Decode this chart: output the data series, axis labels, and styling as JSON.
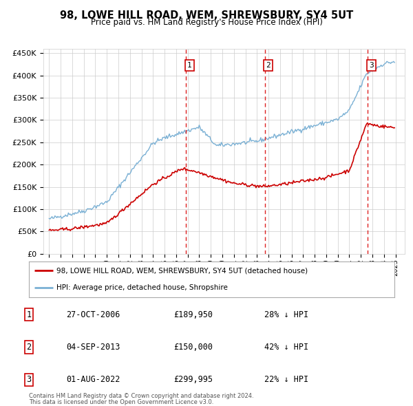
{
  "title": "98, LOWE HILL ROAD, WEM, SHREWSBURY, SY4 5UT",
  "subtitle": "Price paid vs. HM Land Registry's House Price Index (HPI)",
  "legend_entry1": "98, LOWE HILL ROAD, WEM, SHREWSBURY, SY4 5UT (detached house)",
  "legend_entry2": "HPI: Average price, detached house, Shropshire",
  "footer1": "Contains HM Land Registry data © Crown copyright and database right 2024.",
  "footer2": "This data is licensed under the Open Government Licence v3.0.",
  "purchases": [
    {
      "num": 1,
      "date": "27-OCT-2006",
      "price": "£189,950",
      "hpi_diff": "28% ↓ HPI",
      "date_val": 2006.82
    },
    {
      "num": 2,
      "date": "04-SEP-2013",
      "price": "£150,000",
      "hpi_diff": "42% ↓ HPI",
      "date_val": 2013.67
    },
    {
      "num": 3,
      "date": "01-AUG-2022",
      "price": "£299,995",
      "hpi_diff": "22% ↓ HPI",
      "date_val": 2022.58
    }
  ],
  "red_line_color": "#cc0000",
  "blue_line_color": "#7ab0d4",
  "vline_color": "#dd2222",
  "box_color": "#cc0000",
  "bg_color": "#ffffff",
  "grid_color": "#cccccc",
  "ylim": [
    0,
    460000
  ],
  "yticks": [
    0,
    50000,
    100000,
    150000,
    200000,
    250000,
    300000,
    350000,
    400000,
    450000
  ],
  "ytick_labels": [
    "£0",
    "£50K",
    "£100K",
    "£150K",
    "£200K",
    "£250K",
    "£300K",
    "£350K",
    "£400K",
    "£450K"
  ],
  "xlim_start": 1994.5,
  "xlim_end": 2025.8
}
